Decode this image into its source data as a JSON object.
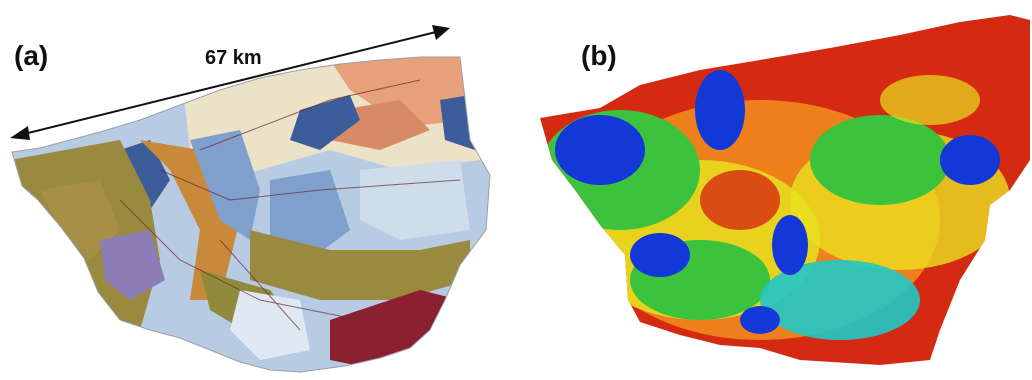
{
  "panels": [
    {
      "label": "(a)"
    },
    {
      "label": "(b)"
    }
  ],
  "scale_bar": {
    "text": "67 km"
  },
  "colors": {
    "geo_olive": "#9a8a40",
    "geo_lightblue": "#b7cbe3",
    "geo_blue": "#7f9fcc",
    "geo_darkblue": "#3d5d9a",
    "geo_beige": "#ece2c8",
    "geo_salmon": "#e6a07a",
    "geo_purple": "#8c7cb8",
    "geo_maroon": "#8a2030",
    "heat_red": "#d42a12",
    "heat_orange": "#f08a1c",
    "heat_yellow": "#e8e020",
    "heat_green": "#3cc23c",
    "heat_cyan": "#20c8c8",
    "heat_blue": "#1438d8"
  }
}
